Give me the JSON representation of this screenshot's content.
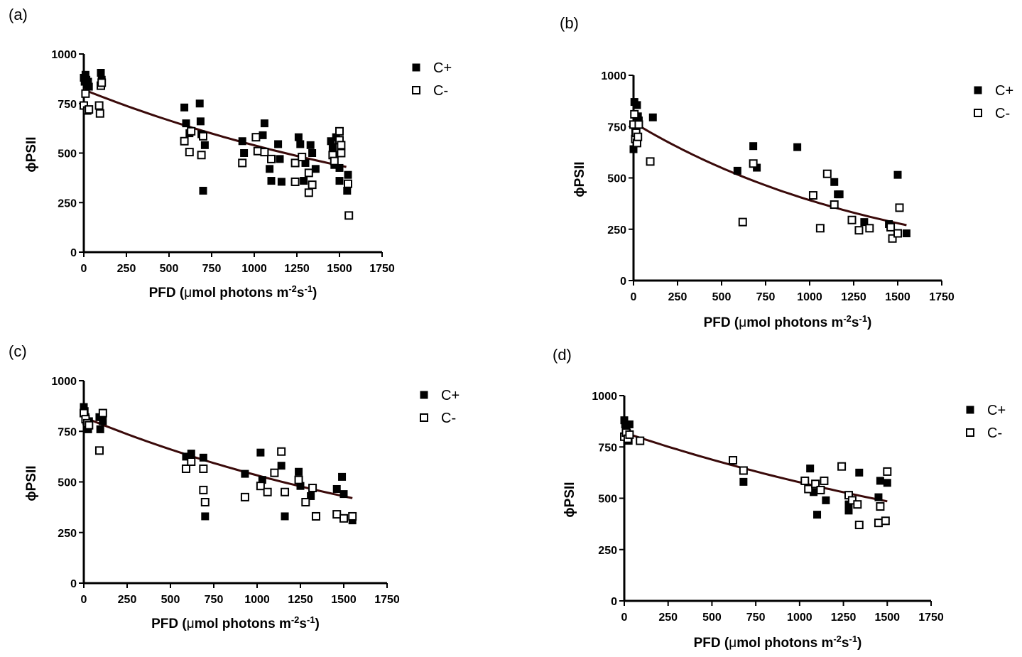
{
  "chart_data": [
    {
      "type": "scatter",
      "panel_label": "(a)",
      "ylabel": "ϕPSII",
      "xlabel": "PFD (μmol photons m-2s-1)",
      "xlabel_parts": {
        "main": "PFD (",
        "mu": "μ",
        "mid": "mol photons m",
        "sup1": "-2",
        "s": "s",
        "sup2": "-1",
        "end": ")"
      },
      "xlim": [
        0,
        1750
      ],
      "ylim": [
        0,
        1000
      ],
      "xticks": [
        "0",
        "250",
        "500",
        "750",
        "1000",
        "1250",
        "1500",
        "1750"
      ],
      "yticks": [
        "0",
        "250",
        "500",
        "750",
        "1000"
      ],
      "legend": [
        {
          "name": "C+",
          "marker": "filled-square"
        },
        {
          "name": "C-",
          "marker": "open-square"
        }
      ],
      "series": [
        {
          "name": "C+",
          "points": [
            [
              0,
              880
            ],
            [
              5,
              860
            ],
            [
              10,
              895
            ],
            [
              15,
              870
            ],
            [
              20,
              845
            ],
            [
              25,
              860
            ],
            [
              30,
              835
            ],
            [
              100,
              905
            ],
            [
              105,
              870
            ],
            [
              590,
              730
            ],
            [
              600,
              650
            ],
            [
              620,
              600
            ],
            [
              680,
              750
            ],
            [
              685,
              660
            ],
            [
              690,
              595
            ],
            [
              700,
              310
            ],
            [
              710,
              540
            ],
            [
              930,
              560
            ],
            [
              940,
              500
            ],
            [
              1050,
              590
            ],
            [
              1060,
              650
            ],
            [
              1090,
              420
            ],
            [
              1100,
              360
            ],
            [
              1140,
              545
            ],
            [
              1150,
              470
            ],
            [
              1160,
              355
            ],
            [
              1260,
              580
            ],
            [
              1270,
              545
            ],
            [
              1290,
              360
            ],
            [
              1300,
              450
            ],
            [
              1330,
              540
            ],
            [
              1340,
              500
            ],
            [
              1360,
              420
            ],
            [
              1450,
              560
            ],
            [
              1460,
              530
            ],
            [
              1470,
              440
            ],
            [
              1480,
              580
            ],
            [
              1500,
              425
            ],
            [
              1500,
              360
            ],
            [
              1550,
              390
            ],
            [
              1545,
              310
            ]
          ]
        },
        {
          "name": "C-",
          "points": [
            [
              0,
              740
            ],
            [
              10,
              800
            ],
            [
              20,
              715
            ],
            [
              30,
              720
            ],
            [
              90,
              740
            ],
            [
              95,
              700
            ],
            [
              100,
              840
            ],
            [
              105,
              855
            ],
            [
              590,
              560
            ],
            [
              620,
              505
            ],
            [
              630,
              610
            ],
            [
              690,
              490
            ],
            [
              700,
              585
            ],
            [
              930,
              450
            ],
            [
              1010,
              580
            ],
            [
              1020,
              510
            ],
            [
              1060,
              505
            ],
            [
              1100,
              470
            ],
            [
              1240,
              450
            ],
            [
              1240,
              355
            ],
            [
              1280,
              480
            ],
            [
              1320,
              400
            ],
            [
              1320,
              300
            ],
            [
              1340,
              340
            ],
            [
              1460,
              490
            ],
            [
              1470,
              460
            ],
            [
              1500,
              610
            ],
            [
              1500,
              565
            ],
            [
              1510,
              540
            ],
            [
              1510,
              500
            ],
            [
              1550,
              345
            ],
            [
              1555,
              185
            ]
          ]
        }
      ],
      "fit": {
        "x_range": [
          0,
          1540
        ],
        "y": [
          820,
          430
        ]
      }
    },
    {
      "type": "scatter",
      "panel_label": "(b)",
      "ylabel": "ϕPSII",
      "xlabel": "PFD (μmol photons m-2s-1)",
      "xlabel_parts": {
        "main": "PFD (",
        "mu": "μ",
        "mid": "mol photons m",
        "sup1": "-2",
        "s": "s",
        "sup2": "-1",
        "end": ")"
      },
      "xlim": [
        0,
        1750
      ],
      "ylim": [
        0,
        1000
      ],
      "xticks": [
        "0",
        "250",
        "500",
        "750",
        "1000",
        "1250",
        "1500",
        "1750"
      ],
      "yticks": [
        "0",
        "250",
        "500",
        "750",
        "1000"
      ],
      "legend": [
        {
          "name": "C+",
          "marker": "filled-square"
        },
        {
          "name": "C-",
          "marker": "open-square"
        }
      ],
      "series": [
        {
          "name": "C+",
          "points": [
            [
              0,
              640
            ],
            [
              5,
              870
            ],
            [
              10,
              730
            ],
            [
              15,
              760
            ],
            [
              20,
              855
            ],
            [
              25,
              800
            ],
            [
              30,
              780
            ],
            [
              110,
              795
            ],
            [
              590,
              535
            ],
            [
              680,
              655
            ],
            [
              700,
              550
            ],
            [
              930,
              650
            ],
            [
              1140,
              480
            ],
            [
              1160,
              420
            ],
            [
              1170,
              420
            ],
            [
              1310,
              285
            ],
            [
              1450,
              275
            ],
            [
              1500,
              515
            ],
            [
              1550,
              230
            ]
          ]
        },
        {
          "name": "C-",
          "points": [
            [
              0,
              760
            ],
            [
              5,
              810
            ],
            [
              10,
              690
            ],
            [
              15,
              720
            ],
            [
              20,
              670
            ],
            [
              25,
              700
            ],
            [
              30,
              760
            ],
            [
              95,
              580
            ],
            [
              620,
              285
            ],
            [
              680,
              570
            ],
            [
              1020,
              415
            ],
            [
              1060,
              255
            ],
            [
              1100,
              520
            ],
            [
              1140,
              370
            ],
            [
              1240,
              295
            ],
            [
              1280,
              245
            ],
            [
              1340,
              255
            ],
            [
              1460,
              260
            ],
            [
              1470,
              205
            ],
            [
              1500,
              230
            ],
            [
              1510,
              355
            ]
          ]
        }
      ],
      "fit": {
        "x_range": [
          0,
          1550
        ],
        "y": [
          770,
          270
        ]
      }
    },
    {
      "type": "scatter",
      "panel_label": "(c)",
      "ylabel": "ϕPSII",
      "xlabel": "PFD (μmol photons m-2s-1)",
      "xlabel_parts": {
        "main": "PFD (",
        "mu": "μ",
        "mid": "mol photons m",
        "sup1": "-2",
        "s": "s",
        "sup2": "-1",
        "end": ")"
      },
      "xlim": [
        0,
        1750
      ],
      "ylim": [
        0,
        1000
      ],
      "xticks": [
        "0",
        "250",
        "500",
        "750",
        "1000",
        "1250",
        "1500",
        "1750"
      ],
      "yticks": [
        "0",
        "250",
        "500",
        "750",
        "1000"
      ],
      "legend": [
        {
          "name": "C+",
          "marker": "filled-square"
        },
        {
          "name": "C-",
          "marker": "open-square"
        }
      ],
      "series": [
        {
          "name": "C+",
          "points": [
            [
              0,
              870
            ],
            [
              5,
              850
            ],
            [
              10,
              820
            ],
            [
              15,
              800
            ],
            [
              20,
              780
            ],
            [
              25,
              760
            ],
            [
              30,
              800
            ],
            [
              90,
              820
            ],
            [
              95,
              760
            ],
            [
              110,
              800
            ],
            [
              590,
              625
            ],
            [
              620,
              640
            ],
            [
              690,
              620
            ],
            [
              700,
              330
            ],
            [
              930,
              540
            ],
            [
              1020,
              645
            ],
            [
              1030,
              510
            ],
            [
              1140,
              580
            ],
            [
              1160,
              330
            ],
            [
              1240,
              550
            ],
            [
              1250,
              480
            ],
            [
              1310,
              430
            ],
            [
              1460,
              465
            ],
            [
              1490,
              525
            ],
            [
              1500,
              440
            ],
            [
              1550,
              310
            ]
          ]
        },
        {
          "name": "C-",
          "points": [
            [
              0,
              840
            ],
            [
              10,
              810
            ],
            [
              20,
              790
            ],
            [
              30,
              780
            ],
            [
              90,
              655
            ],
            [
              110,
              840
            ],
            [
              590,
              565
            ],
            [
              620,
              600
            ],
            [
              690,
              565
            ],
            [
              690,
              460
            ],
            [
              700,
              400
            ],
            [
              930,
              425
            ],
            [
              1020,
              480
            ],
            [
              1060,
              450
            ],
            [
              1100,
              545
            ],
            [
              1140,
              650
            ],
            [
              1160,
              450
            ],
            [
              1240,
              510
            ],
            [
              1280,
              400
            ],
            [
              1320,
              470
            ],
            [
              1340,
              330
            ],
            [
              1460,
              340
            ],
            [
              1500,
              320
            ],
            [
              1550,
              330
            ]
          ]
        }
      ],
      "fit": {
        "x_range": [
          0,
          1550
        ],
        "y": [
          820,
          420
        ]
      }
    },
    {
      "type": "scatter",
      "panel_label": "(d)",
      "ylabel": "ϕPSII",
      "xlabel": "PFD (μmol photons m-2s-1)",
      "xlabel_parts": {
        "main": "PFD (",
        "mu": "μ",
        "mid": "mol photons m",
        "sup1": "-2",
        "s": "s",
        "sup2": "-1",
        "end": ")"
      },
      "xlim": [
        0,
        1750
      ],
      "ylim": [
        0,
        1000
      ],
      "xticks": [
        "0",
        "250",
        "500",
        "750",
        "1000",
        "1250",
        "1500",
        "1750"
      ],
      "yticks": [
        "0",
        "250",
        "500",
        "750",
        "1000"
      ],
      "legend": [
        {
          "name": "C+",
          "marker": "filled-square"
        },
        {
          "name": "C-",
          "marker": "open-square"
        }
      ],
      "series": [
        {
          "name": "C+",
          "points": [
            [
              0,
              880
            ],
            [
              5,
              860
            ],
            [
              10,
              840
            ],
            [
              15,
              820
            ],
            [
              20,
              800
            ],
            [
              25,
              780
            ],
            [
              30,
              860
            ],
            [
              680,
              580
            ],
            [
              1060,
              645
            ],
            [
              1080,
              530
            ],
            [
              1100,
              420
            ],
            [
              1150,
              490
            ],
            [
              1280,
              440
            ],
            [
              1280,
              470
            ],
            [
              1340,
              625
            ],
            [
              1450,
              505
            ],
            [
              1460,
              585
            ],
            [
              1500,
              575
            ]
          ]
        },
        {
          "name": "C-",
          "points": [
            [
              0,
              800
            ],
            [
              10,
              820
            ],
            [
              20,
              790
            ],
            [
              30,
              810
            ],
            [
              90,
              780
            ],
            [
              620,
              685
            ],
            [
              680,
              635
            ],
            [
              1030,
              585
            ],
            [
              1050,
              545
            ],
            [
              1090,
              570
            ],
            [
              1120,
              540
            ],
            [
              1140,
              585
            ],
            [
              1240,
              655
            ],
            [
              1280,
              515
            ],
            [
              1300,
              490
            ],
            [
              1330,
              470
            ],
            [
              1340,
              370
            ],
            [
              1450,
              380
            ],
            [
              1460,
              460
            ],
            [
              1490,
              390
            ],
            [
              1500,
              630
            ]
          ]
        }
      ],
      "fit": {
        "x_range": [
          0,
          1500
        ],
        "y": [
          820,
          485
        ]
      }
    }
  ]
}
